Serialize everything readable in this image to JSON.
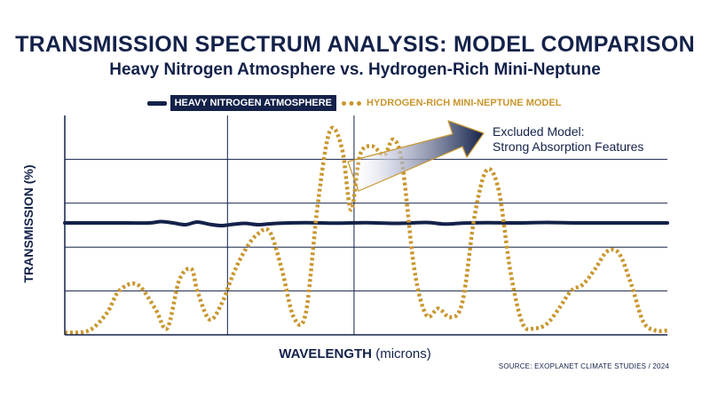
{
  "chart_data": {
    "type": "line",
    "title": "TRANSMISSION SPECTRUM ANALYSIS: MODEL COMPARISON",
    "subtitle": "Heavy Nitrogen Atmosphere vs. Hydrogen-Rich Mini-Neptune",
    "xlabel_bold": "WAVELENGTH",
    "xlabel_unit": "(microns)",
    "ylabel": "TRANSMISSION (%)",
    "grid": true,
    "legend_position": "top-center",
    "x_range": [
      0,
      100
    ],
    "y_range": [
      0,
      100
    ],
    "series": [
      {
        "name": "HEAVY NITROGEN ATMOSPHERE",
        "style": "solid",
        "color": "#14224a",
        "x": [
          0,
          10,
          14,
          16,
          18,
          20,
          22,
          24,
          26,
          28,
          30,
          32,
          34,
          36,
          40,
          45,
          50,
          55,
          60,
          63,
          66,
          70,
          75,
          80,
          85,
          90,
          95,
          100
        ],
        "y": [
          51,
          51,
          51,
          51.6,
          51,
          50.2,
          51.4,
          50.4,
          49.8,
          50.4,
          50.8,
          50.2,
          50.6,
          50.9,
          51.1,
          50.9,
          51.1,
          50.8,
          51.2,
          50.5,
          50.9,
          51.1,
          51,
          51.2,
          51,
          51,
          51,
          51
        ]
      },
      {
        "name": "HYDROGEN-RICH MINI-NEPTUNE MODEL",
        "style": "dotted",
        "color": "#c9962e",
        "x": [
          0,
          4,
          7,
          9,
          12,
          15,
          17,
          19,
          21,
          22,
          24,
          26,
          28,
          30,
          32,
          34,
          36,
          38,
          40,
          42,
          44,
          46,
          47.5,
          49,
          51,
          53,
          54.5,
          56,
          58,
          60,
          62,
          64,
          66,
          68,
          70,
          72,
          74,
          76,
          78,
          80,
          82,
          84,
          86,
          88,
          90,
          92,
          94,
          96,
          98,
          100
        ],
        "y": [
          1,
          2,
          10,
          20,
          23,
          12,
          3,
          25,
          30,
          20,
          7,
          14,
          28,
          39,
          46,
          47,
          30,
          8,
          10,
          60,
          93,
          85,
          57,
          82,
          86,
          82,
          89,
          78,
          30,
          9,
          12,
          8,
          15,
          54,
          75,
          66,
          28,
          5,
          3,
          5,
          12,
          20,
          23,
          30,
          38,
          37,
          23,
          6,
          2,
          2
        ]
      }
    ],
    "annotation": {
      "line1": "Excluded Model:",
      "line2": "Strong Absorption Features"
    },
    "source": "SOURCE: EXOPLANET CLIMATE STUDIES / 2024"
  }
}
